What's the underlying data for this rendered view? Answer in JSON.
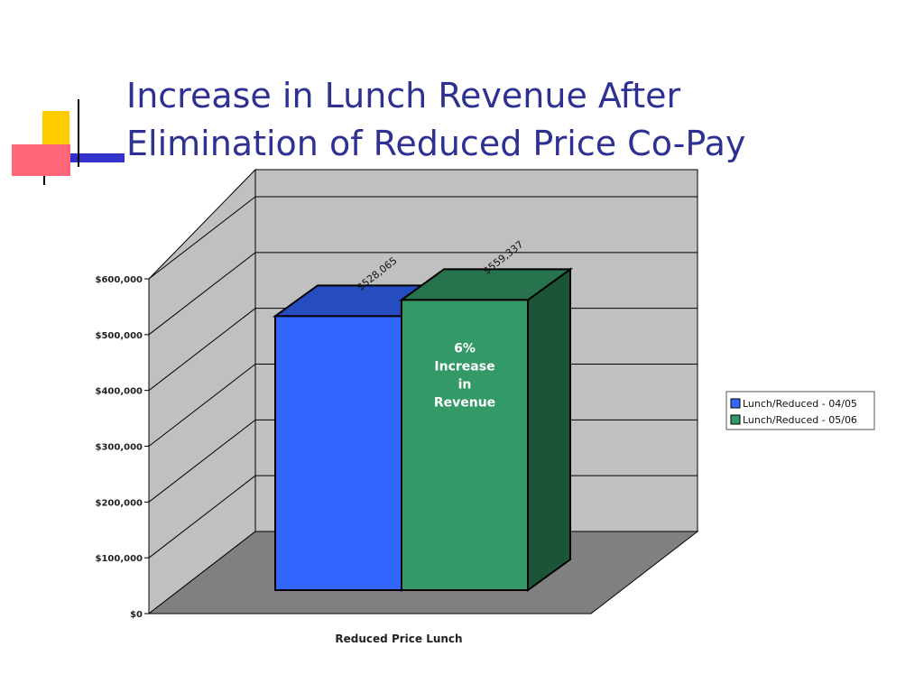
{
  "slide": {
    "title_line1": "Increase in Lunch Revenue After",
    "title_line2": "Elimination of Reduced Price Co-Pay"
  },
  "colors": {
    "title": "#2e3192",
    "series1": "#3366ff",
    "series2": "#339966",
    "wall": "#c0c0c0",
    "floor": "#808080"
  },
  "chart_data": {
    "type": "bar",
    "categories": [
      "Reduced Price Lunch"
    ],
    "series": [
      {
        "name": "Lunch/Reduced -  04/05",
        "values": [
          528065
        ],
        "label": "$528,065",
        "color": "#3366ff"
      },
      {
        "name": "Lunch/Reduced - 05/06",
        "values": [
          559337
        ],
        "label": "$559,337",
        "color": "#339966"
      }
    ],
    "xlabel": "Reduced Price Lunch",
    "ylabel": "",
    "ylim": [
      0,
      600000
    ],
    "yticks": [
      {
        "value": 0,
        "label": "$0"
      },
      {
        "value": 100000,
        "label": "$100,000"
      },
      {
        "value": 200000,
        "label": "$200,000"
      },
      {
        "value": 300000,
        "label": "$300,000"
      },
      {
        "value": 400000,
        "label": "$400,000"
      },
      {
        "value": 500000,
        "label": "$500,000"
      },
      {
        "value": 600000,
        "label": "$600,000"
      }
    ],
    "grid": true,
    "legend_position": "right",
    "annotation": [
      "6%",
      "Increase",
      "in",
      "Revenue"
    ],
    "style": "3d-column"
  }
}
